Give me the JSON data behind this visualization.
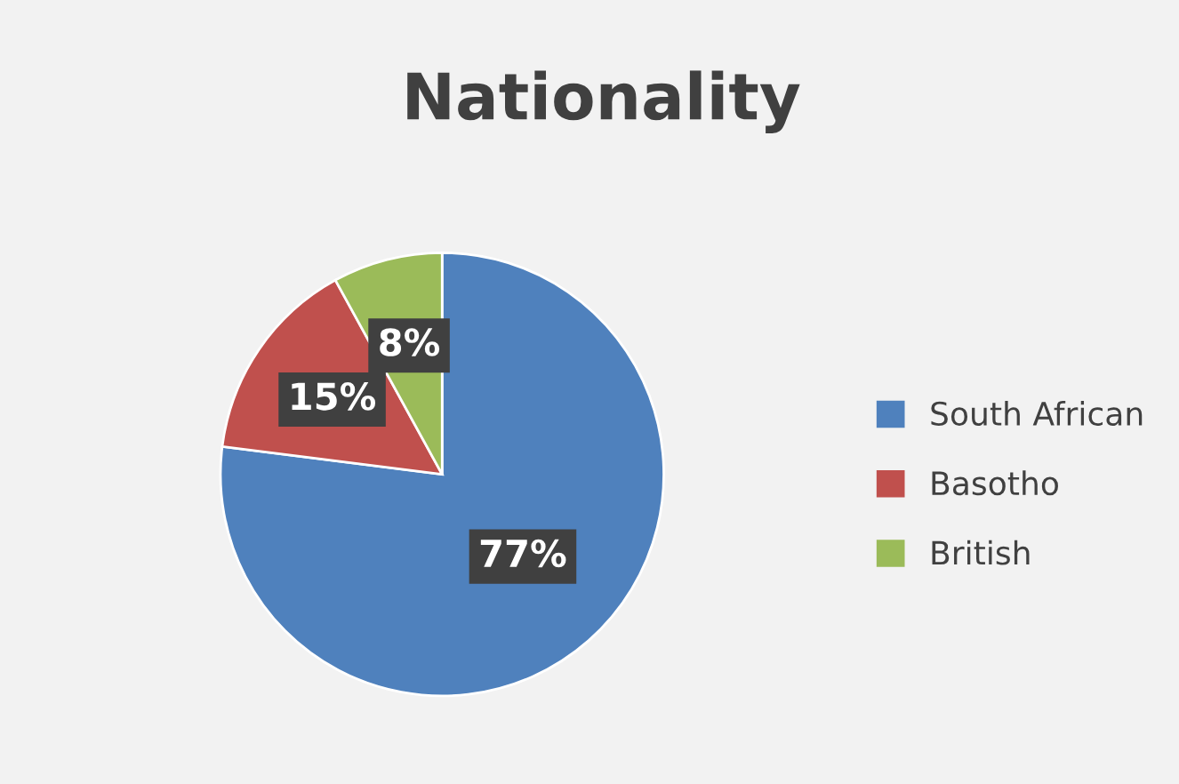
{
  "chart_data": {
    "type": "pie",
    "title": "Nationality",
    "categories": [
      "South African",
      "Basotho",
      "British"
    ],
    "values": [
      77,
      15,
      8
    ],
    "colors": [
      "#4f81bd",
      "#c0504d",
      "#9bbb59"
    ],
    "value_labels": [
      "77%",
      "15%",
      "8%"
    ],
    "legend": "right"
  }
}
